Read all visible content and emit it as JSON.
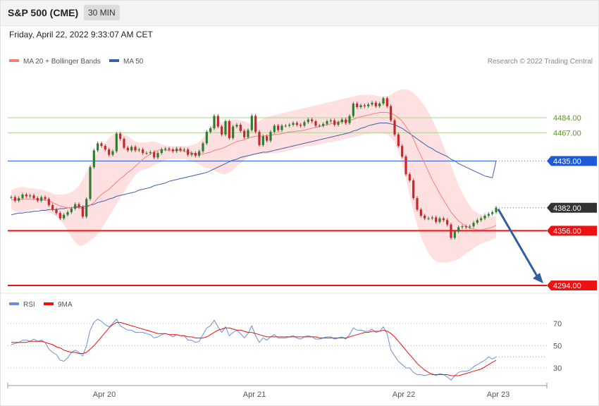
{
  "header": {
    "title": "S&P 500 (CME)",
    "timeframe": "30 MIN",
    "datetime": "Friday, April 22, 2022 9:33:07 AM CET"
  },
  "legend": {
    "ma20_label": "MA 20 + Bollinger Bands",
    "ma50_label": "MA 50",
    "copyright": "Research © 2022 Trading Central",
    "rsi_label": "RSI",
    "ma9_label": "9MA"
  },
  "colors": {
    "ma20": "#f08080",
    "bands_fill": "#ffd6d6",
    "ma50": "#3a5fa8",
    "bull": "#2e7d32",
    "bear": "#c62828",
    "resistance": "#a5d68a",
    "pivot": "#1e5ad6",
    "support": "#ee1111",
    "current": "#333333",
    "arrow": "#2f5fa0",
    "rsi": "#6b8fd6",
    "rsi_ma": "#ee1111"
  },
  "chart_data": [
    {
      "type": "candlestick",
      "title": "S&P 500 (CME)",
      "timeframe": "30 MIN",
      "x_ticks": [
        "Apr 20",
        "Apr 21",
        "Apr 22",
        "Apr 23"
      ],
      "ylim": [
        4290,
        4520
      ],
      "levels": [
        {
          "value": 4484.0,
          "label": "4484.00",
          "kind": "resistance"
        },
        {
          "value": 4467.0,
          "label": "4467.00",
          "kind": "resistance"
        },
        {
          "value": 4435.0,
          "label": "4435.00",
          "kind": "pivot"
        },
        {
          "value": 4382.0,
          "label": "4382.00",
          "kind": "current"
        },
        {
          "value": 4356.0,
          "label": "4356.00",
          "kind": "support"
        },
        {
          "value": 4294.0,
          "label": "4294.00",
          "kind": "support"
        }
      ],
      "close": [
        4394,
        4390,
        4393,
        4397,
        4395,
        4396,
        4393,
        4390,
        4394,
        4392,
        4385,
        4380,
        4376,
        4370,
        4374,
        4377,
        4381,
        4386,
        4383,
        4372,
        4392,
        4428,
        4447,
        4455,
        4452,
        4448,
        4442,
        4446,
        4466,
        4460,
        4450,
        4447,
        4451,
        4447,
        4448,
        4444,
        4444,
        4445,
        4439,
        4444,
        4448,
        4449,
        4448,
        4446,
        4449,
        4447,
        4448,
        4442,
        4444,
        4441,
        4446,
        4455,
        4468,
        4472,
        4486,
        4474,
        4465,
        4480,
        4461,
        4474,
        4476,
        4469,
        4462,
        4470,
        4486,
        4468,
        4453,
        4463,
        4458,
        4468,
        4475,
        4470,
        4475,
        4475,
        4476,
        4478,
        4476,
        4475,
        4479,
        4482,
        4480,
        4475,
        4475,
        4477,
        4480,
        4481,
        4476,
        4479,
        4482,
        4478,
        4486,
        4500,
        4496,
        4498,
        4497,
        4499,
        4501,
        4497,
        4500,
        4506,
        4497,
        4481,
        4465,
        4452,
        4440,
        4420,
        4413,
        4393,
        4380,
        4373,
        4370,
        4370,
        4371,
        4366,
        4370,
        4368,
        4363,
        4348,
        4355,
        4360,
        4361,
        4360,
        4361,
        4365,
        4368,
        4370,
        4373,
        4375,
        4377,
        4382
      ],
      "ma20": [
        4391,
        4391,
        4391,
        4392,
        4392,
        4392,
        4392,
        4392,
        4391,
        4391,
        4390,
        4388,
        4386,
        4384,
        4383,
        4382,
        4382,
        4382,
        4382,
        4381,
        4382,
        4385,
        4388,
        4393,
        4397,
        4400,
        4403,
        4407,
        4411,
        4415,
        4418,
        4422,
        4425,
        4429,
        4433,
        4437,
        4440,
        4443,
        4445,
        4447,
        4448,
        4447,
        4447,
        4447,
        4447,
        4447,
        4446,
        4445,
        4444,
        4443,
        4443,
        4443,
        4444,
        4445,
        4447,
        4448,
        4449,
        4451,
        4453,
        4455,
        4457,
        4458,
        4459,
        4461,
        4462,
        4463,
        4463,
        4463,
        4464,
        4464,
        4465,
        4465,
        4466,
        4467,
        4468,
        4468,
        4469,
        4469,
        4470,
        4471,
        4472,
        4473,
        4474,
        4475,
        4476,
        4477,
        4478,
        4479,
        4480,
        4480,
        4481,
        4482,
        4484,
        4485,
        4486,
        4487,
        4488,
        4489,
        4490,
        4490,
        4490,
        4489,
        4487,
        4484,
        4480,
        4474,
        4468,
        4460,
        4450,
        4441,
        4432,
        4423,
        4414,
        4406,
        4398,
        4391,
        4384,
        4377,
        4372,
        4367,
        4364,
        4361,
        4359,
        4358,
        4357,
        4357,
        4358,
        4359,
        4360,
        4362
      ],
      "ma50": [
        4374,
        4375,
        4376,
        4376,
        4377,
        4377,
        4378,
        4378,
        4379,
        4379,
        4380,
        4380,
        4380,
        4381,
        4381,
        4382,
        4382,
        4383,
        4383,
        4383,
        4384,
        4385,
        4386,
        4388,
        4389,
        4390,
        4392,
        4393,
        4395,
        4396,
        4397,
        4398,
        4399,
        4400,
        4402,
        4403,
        4404,
        4405,
        4407,
        4408,
        4409,
        4410,
        4412,
        4413,
        4414,
        4415,
        4416,
        4417,
        4418,
        4419,
        4420,
        4421,
        4422,
        4424,
        4426,
        4428,
        4430,
        4432,
        4434,
        4436,
        4437,
        4439,
        4440,
        4441,
        4442,
        4443,
        4444,
        4445,
        4445,
        4446,
        4447,
        4448,
        4449,
        4450,
        4451,
        4452,
        4453,
        4454,
        4455,
        4456,
        4457,
        4458,
        4459,
        4460,
        4461,
        4462,
        4463,
        4464,
        4465,
        4466,
        4467,
        4469,
        4470,
        4472,
        4473,
        4475,
        4476,
        4477,
        4478,
        4478,
        4478,
        4477,
        4476,
        4474,
        4472,
        4469,
        4466,
        4463,
        4460,
        4457,
        4454,
        4451,
        4449,
        4446,
        4444,
        4442,
        4440,
        4437,
        4435,
        4432,
        4430,
        4428,
        4426,
        4424,
        4422,
        4420,
        4418,
        4417,
        4416,
        4435
      ],
      "bollinger_upper": [
        4402,
        4404,
        4405,
        4406,
        4405,
        4404,
        4404,
        4403,
        4403,
        4401,
        4400,
        4398,
        4397,
        4397,
        4397,
        4398,
        4400,
        4403,
        4407,
        4414,
        4422,
        4430,
        4438,
        4446,
        4450,
        4455,
        4461,
        4465,
        4467,
        4466,
        4465,
        4463,
        4460,
        4457,
        4456,
        4456,
        4456,
        4457,
        4457,
        4456,
        4454,
        4453,
        4452,
        4452,
        4452,
        4452,
        4452,
        4452,
        4453,
        4454,
        4457,
        4461,
        4467,
        4473,
        4476,
        4478,
        4479,
        4480,
        4481,
        4482,
        4482,
        4481,
        4480,
        4478,
        4477,
        4478,
        4480,
        4483,
        4485,
        4486,
        4487,
        4488,
        4489,
        4490,
        4491,
        4492,
        4493,
        4494,
        4495,
        4496,
        4497,
        4498,
        4499,
        4500,
        4501,
        4502,
        4503,
        4504,
        4505,
        4506,
        4507,
        4508,
        4509,
        4510,
        4510,
        4510,
        4510,
        4509,
        4508,
        4507,
        4508,
        4510,
        4513,
        4515,
        4516,
        4516,
        4515,
        4512,
        4508,
        4503,
        4497,
        4490,
        4482,
        4473,
        4463,
        4452,
        4441,
        4430,
        4419,
        4408,
        4399,
        4391,
        4384,
        4379,
        4376,
        4374,
        4373,
        4372,
        4372,
        4373
      ],
      "bollinger_lower": [
        4380,
        4378,
        4377,
        4377,
        4378,
        4379,
        4380,
        4381,
        4379,
        4378,
        4377,
        4375,
        4372,
        4368,
        4363,
        4356,
        4349,
        4343,
        4339,
        4339,
        4342,
        4345,
        4348,
        4352,
        4358,
        4365,
        4372,
        4379,
        4386,
        4393,
        4400,
        4407,
        4413,
        4419,
        4423,
        4425,
        4426,
        4428,
        4430,
        4432,
        4434,
        4436,
        4437,
        4437,
        4437,
        4437,
        4437,
        4436,
        4435,
        4433,
        4431,
        4429,
        4427,
        4426,
        4424,
        4422,
        4420,
        4420,
        4422,
        4425,
        4429,
        4432,
        4436,
        4440,
        4442,
        4443,
        4443,
        4443,
        4443,
        4444,
        4444,
        4444,
        4445,
        4446,
        4447,
        4448,
        4449,
        4450,
        4451,
        4452,
        4452,
        4453,
        4454,
        4455,
        4456,
        4456,
        4457,
        4458,
        4459,
        4460,
        4461,
        4462,
        4463,
        4464,
        4465,
        4465,
        4466,
        4466,
        4466,
        4466,
        4465,
        4462,
        4456,
        4446,
        4432,
        4415,
        4396,
        4378,
        4362,
        4349,
        4339,
        4331,
        4325,
        4321,
        4320,
        4320,
        4320,
        4321,
        4322,
        4324,
        4327,
        4330,
        4333,
        4336,
        4339,
        4341,
        4343,
        4344,
        4346,
        4348
      ]
    },
    {
      "type": "line",
      "title": "",
      "series": [
        {
          "name": "RSI",
          "values": [
            51,
            52,
            53,
            55,
            55,
            54,
            56,
            54,
            55,
            53,
            47,
            44,
            42,
            37,
            36,
            39,
            44,
            46,
            44,
            41,
            50,
            64,
            71,
            74,
            72,
            69,
            67,
            70,
            74,
            68,
            66,
            64,
            64,
            62,
            62,
            62,
            61,
            60,
            57,
            58,
            60,
            61,
            60,
            58,
            60,
            59,
            59,
            55,
            55,
            53,
            54,
            60,
            66,
            68,
            73,
            67,
            62,
            67,
            59,
            62,
            64,
            61,
            57,
            61,
            68,
            59,
            53,
            57,
            55,
            58,
            60,
            57,
            57,
            57,
            58,
            59,
            57,
            56,
            58,
            59,
            58,
            56,
            56,
            57,
            58,
            58,
            56,
            57,
            58,
            56,
            60,
            66,
            64,
            64,
            63,
            63,
            65,
            62,
            63,
            67,
            61,
            46,
            41,
            36,
            33,
            30,
            30,
            26,
            24,
            24,
            23,
            24,
            25,
            23,
            25,
            24,
            22,
            19,
            23,
            26,
            27,
            27,
            28,
            31,
            33,
            35,
            37,
            40,
            38,
            40
          ]
        },
        {
          "name": "9MA",
          "values": [
            53,
            53,
            53,
            53,
            53,
            54,
            54,
            54,
            54,
            53,
            52,
            51,
            49,
            48,
            46,
            45,
            44,
            44,
            43,
            43,
            44,
            47,
            50,
            54,
            58,
            62,
            66,
            69,
            71,
            71,
            70,
            69,
            68,
            67,
            66,
            65,
            64,
            63,
            62,
            61,
            61,
            61,
            60,
            60,
            60,
            59,
            59,
            58,
            58,
            57,
            57,
            57,
            58,
            60,
            62,
            64,
            65,
            66,
            66,
            65,
            64,
            64,
            63,
            62,
            62,
            61,
            60,
            59,
            58,
            58,
            58,
            58,
            58,
            58,
            58,
            58,
            58,
            58,
            58,
            58,
            58,
            58,
            57,
            57,
            57,
            57,
            57,
            57,
            57,
            57,
            58,
            59,
            60,
            61,
            62,
            62,
            63,
            63,
            63,
            64,
            63,
            61,
            58,
            54,
            50,
            46,
            42,
            38,
            34,
            31,
            28,
            26,
            24,
            24,
            24,
            24,
            24,
            23,
            23,
            23,
            24,
            25,
            26,
            27,
            28,
            29,
            31,
            33,
            35,
            37
          ]
        }
      ],
      "ylim": [
        20,
        80
      ],
      "y_ticks": [
        70,
        50,
        30
      ]
    }
  ]
}
